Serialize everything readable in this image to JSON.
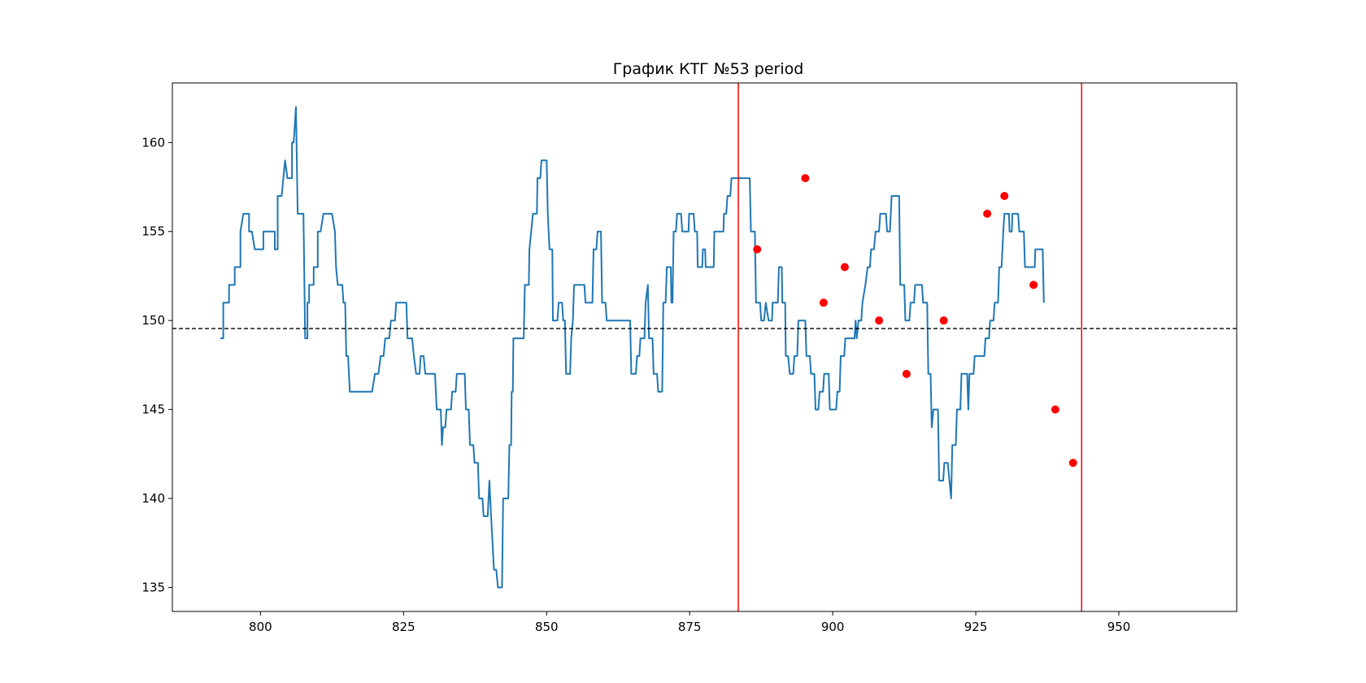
{
  "chart_data": {
    "type": "line",
    "title": "График КТГ №53 period",
    "xlabel": "",
    "ylabel": "",
    "xlim": [
      784.6,
      970.6
    ],
    "ylim": [
      133.65,
      163.35
    ],
    "xticks": [
      800,
      825,
      850,
      875,
      900,
      925,
      950
    ],
    "yticks": [
      135,
      140,
      145,
      150,
      155,
      160
    ],
    "grid": false,
    "legend": "none",
    "colors": {
      "line": "#1f77b4",
      "markers": "#ff0000",
      "vlines": "#ff0000",
      "hline": "#000000"
    },
    "baseline": 149.55,
    "vertical_lines": [
      883.5,
      943.5
    ],
    "series": [
      {
        "points": [
          [
            793,
            149
          ],
          [
            793.5,
            149
          ],
          [
            793.5,
            151
          ],
          [
            794.5,
            151
          ],
          [
            794.5,
            152
          ],
          [
            795.5,
            152
          ],
          [
            795.5,
            153
          ],
          [
            796.5,
            153
          ],
          [
            796.5,
            155
          ],
          [
            797,
            156
          ],
          [
            798,
            156
          ],
          [
            798,
            155
          ],
          [
            798.5,
            155
          ],
          [
            799,
            154
          ],
          [
            800.5,
            154
          ],
          [
            800.5,
            155
          ],
          [
            802.5,
            155
          ],
          [
            802.5,
            154
          ],
          [
            803,
            154
          ],
          [
            803,
            157
          ],
          [
            803.7,
            157
          ],
          [
            804.3,
            159
          ],
          [
            804.7,
            158
          ],
          [
            805.5,
            158
          ],
          [
            805.5,
            160
          ],
          [
            805.8,
            160
          ],
          [
            806.2,
            162
          ],
          [
            806.5,
            156
          ],
          [
            807.5,
            156
          ],
          [
            807.8,
            149
          ],
          [
            808.2,
            149
          ],
          [
            808.2,
            151
          ],
          [
            808.5,
            151
          ],
          [
            808.5,
            152
          ],
          [
            809.3,
            152
          ],
          [
            809.3,
            153
          ],
          [
            810,
            153
          ],
          [
            810,
            155
          ],
          [
            810.5,
            155
          ],
          [
            811,
            156
          ],
          [
            812.5,
            156
          ],
          [
            813,
            155
          ],
          [
            813.2,
            153
          ],
          [
            813.5,
            152
          ],
          [
            814.3,
            152
          ],
          [
            814.5,
            151
          ],
          [
            814.8,
            151
          ],
          [
            815,
            148
          ],
          [
            815.3,
            148
          ],
          [
            815.6,
            146
          ],
          [
            819.5,
            146
          ],
          [
            820,
            147
          ],
          [
            820.6,
            147
          ],
          [
            821,
            148
          ],
          [
            821.5,
            148
          ],
          [
            821.8,
            149
          ],
          [
            822.5,
            149
          ],
          [
            822.8,
            150
          ],
          [
            823.5,
            150
          ],
          [
            823.7,
            151
          ],
          [
            825.5,
            151
          ],
          [
            825.7,
            149
          ],
          [
            826.5,
            149
          ],
          [
            826.8,
            148
          ],
          [
            827.2,
            147
          ],
          [
            827.8,
            147
          ],
          [
            828,
            148
          ],
          [
            828.5,
            148
          ],
          [
            828.8,
            147
          ],
          [
            830.5,
            147
          ],
          [
            830.8,
            145
          ],
          [
            831.5,
            145
          ],
          [
            831.7,
            143
          ],
          [
            831.9,
            144
          ],
          [
            832.3,
            144
          ],
          [
            832.5,
            145
          ],
          [
            833.3,
            145
          ],
          [
            833.5,
            146
          ],
          [
            834.1,
            146
          ],
          [
            834.3,
            147
          ],
          [
            835.7,
            147
          ],
          [
            835.9,
            145
          ],
          [
            836.4,
            145
          ],
          [
            836.6,
            143
          ],
          [
            837.2,
            143
          ],
          [
            837.4,
            142
          ],
          [
            838,
            142
          ],
          [
            838.2,
            140
          ],
          [
            838.8,
            140
          ],
          [
            839,
            139
          ],
          [
            839.7,
            139
          ],
          [
            840,
            141
          ],
          [
            840.3,
            139
          ],
          [
            840.8,
            136
          ],
          [
            841.2,
            136
          ],
          [
            841.5,
            135
          ],
          [
            842.2,
            135
          ],
          [
            842.4,
            140
          ],
          [
            843.3,
            140
          ],
          [
            843.5,
            143
          ],
          [
            843.8,
            143
          ],
          [
            843.9,
            146
          ],
          [
            844.1,
            146
          ],
          [
            844.2,
            149
          ],
          [
            846,
            149
          ],
          [
            846.2,
            152
          ],
          [
            846.9,
            152
          ],
          [
            847,
            154
          ],
          [
            847.3,
            155
          ],
          [
            847.6,
            156
          ],
          [
            848.3,
            156
          ],
          [
            848.4,
            158
          ],
          [
            848.9,
            158
          ],
          [
            849.1,
            159
          ],
          [
            850,
            159
          ],
          [
            850.2,
            156
          ],
          [
            850.5,
            154
          ],
          [
            851,
            154
          ],
          [
            851.1,
            150
          ],
          [
            851.9,
            150
          ],
          [
            852.1,
            151
          ],
          [
            852.7,
            151
          ],
          [
            852.9,
            150
          ],
          [
            853.2,
            150
          ],
          [
            853.4,
            147
          ],
          [
            854.1,
            147
          ],
          [
            854.3,
            149
          ],
          [
            854.6,
            150
          ],
          [
            854.8,
            152
          ],
          [
            856.6,
            152
          ],
          [
            856.8,
            151
          ],
          [
            858,
            151
          ],
          [
            858.2,
            154
          ],
          [
            858.7,
            154
          ],
          [
            858.9,
            155
          ],
          [
            859.5,
            155
          ],
          [
            859.7,
            151
          ],
          [
            860.3,
            151
          ],
          [
            860.5,
            150
          ],
          [
            864.6,
            150
          ],
          [
            864.8,
            147
          ],
          [
            865.6,
            147
          ],
          [
            865.8,
            148
          ],
          [
            866.2,
            148
          ],
          [
            866.4,
            149
          ],
          [
            867.1,
            149
          ],
          [
            867.3,
            151
          ],
          [
            867.7,
            152
          ],
          [
            867.9,
            149
          ],
          [
            868.5,
            149
          ],
          [
            868.7,
            147
          ],
          [
            869.3,
            147
          ],
          [
            869.5,
            146
          ],
          [
            870.2,
            146
          ],
          [
            870.4,
            151
          ],
          [
            870.8,
            151
          ],
          [
            871,
            153
          ],
          [
            871.7,
            153
          ],
          [
            871.8,
            151
          ],
          [
            872,
            151
          ],
          [
            872.2,
            155
          ],
          [
            872.6,
            155
          ],
          [
            872.8,
            156
          ],
          [
            873.5,
            156
          ],
          [
            873.7,
            155
          ],
          [
            874.8,
            155
          ],
          [
            874.9,
            156
          ],
          [
            875.7,
            156
          ],
          [
            875.9,
            155
          ],
          [
            876.3,
            155
          ],
          [
            876.4,
            153
          ],
          [
            877.2,
            153
          ],
          [
            877.3,
            154
          ],
          [
            877.7,
            154
          ],
          [
            877.8,
            153
          ],
          [
            879.2,
            153
          ],
          [
            879.3,
            155
          ],
          [
            880.9,
            155
          ],
          [
            881,
            156
          ],
          [
            881.4,
            156
          ],
          [
            881.6,
            157
          ],
          [
            882.1,
            157
          ],
          [
            882.3,
            158
          ],
          [
            885.5,
            158
          ],
          [
            885.7,
            155
          ],
          [
            886.4,
            155
          ],
          [
            886.6,
            151
          ],
          [
            887.3,
            151
          ],
          [
            887.5,
            150
          ],
          [
            888,
            150
          ],
          [
            888.3,
            151
          ],
          [
            888.8,
            150
          ],
          [
            889.4,
            150
          ],
          [
            889.5,
            151
          ],
          [
            890.4,
            151
          ],
          [
            890.6,
            153
          ],
          [
            891.1,
            153
          ],
          [
            891.2,
            151
          ],
          [
            891.7,
            151
          ],
          [
            891.8,
            148
          ],
          [
            892.2,
            148
          ],
          [
            892.5,
            147
          ],
          [
            893.1,
            147
          ],
          [
            893.3,
            148
          ],
          [
            893.8,
            148
          ],
          [
            894,
            150
          ],
          [
            895.2,
            150
          ],
          [
            895.4,
            148
          ],
          [
            896,
            148
          ],
          [
            896.2,
            147
          ],
          [
            896.8,
            147
          ],
          [
            897,
            145
          ],
          [
            897.5,
            145
          ],
          [
            897.7,
            146
          ],
          [
            898.3,
            146
          ],
          [
            898.5,
            147
          ],
          [
            899.3,
            147
          ],
          [
            899.5,
            145
          ],
          [
            900.6,
            145
          ],
          [
            900.8,
            146
          ],
          [
            901.2,
            146
          ],
          [
            901.4,
            148
          ],
          [
            902,
            148
          ],
          [
            902.2,
            149
          ],
          [
            903.8,
            149
          ],
          [
            904,
            150
          ],
          [
            904.2,
            149
          ],
          [
            904.5,
            150
          ],
          [
            905,
            150
          ],
          [
            905.2,
            151
          ],
          [
            905.7,
            152
          ],
          [
            906.1,
            153
          ],
          [
            906.5,
            153
          ],
          [
            906.7,
            154
          ],
          [
            907.2,
            154
          ],
          [
            907.5,
            155
          ],
          [
            908.1,
            155
          ],
          [
            908.3,
            156
          ],
          [
            909.3,
            156
          ],
          [
            909.5,
            155
          ],
          [
            910,
            155
          ],
          [
            910.3,
            157
          ],
          [
            911.6,
            157
          ],
          [
            911.8,
            152
          ],
          [
            912.5,
            152
          ],
          [
            912.7,
            150
          ],
          [
            913.4,
            150
          ],
          [
            913.6,
            151
          ],
          [
            914.2,
            151
          ],
          [
            914.4,
            152
          ],
          [
            915.6,
            152
          ],
          [
            915.8,
            151
          ],
          [
            916.5,
            151
          ],
          [
            916.7,
            147
          ],
          [
            917.1,
            147
          ],
          [
            917.3,
            144
          ],
          [
            917.6,
            145
          ],
          [
            918.4,
            145
          ],
          [
            918.6,
            141
          ],
          [
            919.3,
            141
          ],
          [
            919.5,
            142
          ],
          [
            920.1,
            142
          ],
          [
            920.4,
            141
          ],
          [
            920.7,
            140
          ],
          [
            920.9,
            143
          ],
          [
            921.5,
            143
          ],
          [
            921.7,
            145
          ],
          [
            922.3,
            145
          ],
          [
            922.5,
            147
          ],
          [
            923.5,
            147
          ],
          [
            923.7,
            145
          ],
          [
            923.9,
            147
          ],
          [
            924.6,
            147
          ],
          [
            924.8,
            148
          ],
          [
            926.5,
            148
          ],
          [
            926.7,
            149
          ],
          [
            927.3,
            149
          ],
          [
            927.5,
            150
          ],
          [
            928.1,
            150
          ],
          [
            928.3,
            151
          ],
          [
            928.9,
            151
          ],
          [
            929.1,
            153
          ],
          [
            929.5,
            153
          ],
          [
            929.8,
            155
          ],
          [
            930,
            156
          ],
          [
            930.8,
            156
          ],
          [
            930.9,
            155
          ],
          [
            931.3,
            155
          ],
          [
            931.4,
            156
          ],
          [
            932.4,
            156
          ],
          [
            932.6,
            155
          ],
          [
            933.4,
            155
          ],
          [
            933.6,
            153
          ],
          [
            935.3,
            153
          ],
          [
            935.4,
            154
          ],
          [
            936.7,
            154
          ],
          [
            936.9,
            151
          ]
        ]
      }
    ],
    "markers": [
      [
        886.8,
        154
      ],
      [
        895.2,
        158
      ],
      [
        898.4,
        151
      ],
      [
        902.1,
        153
      ],
      [
        908.1,
        150
      ],
      [
        912.9,
        147
      ],
      [
        919.4,
        150
      ],
      [
        927.0,
        156
      ],
      [
        930.0,
        157
      ],
      [
        935.1,
        152
      ],
      [
        938.9,
        145
      ],
      [
        942.0,
        142
      ]
    ]
  }
}
